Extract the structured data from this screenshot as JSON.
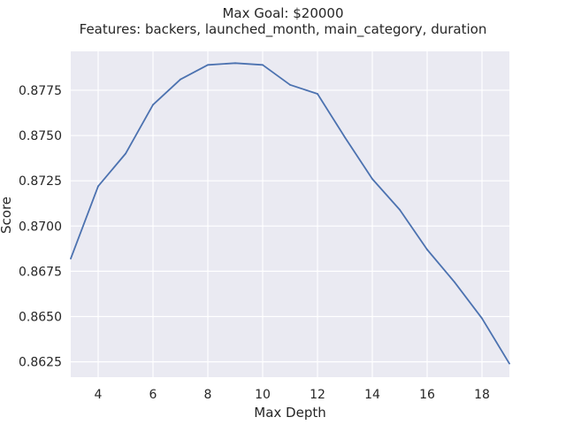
{
  "chart_data": {
    "type": "line",
    "title": "Max Goal: $20000",
    "subtitle": "Features: backers, launched_month, main_category, duration",
    "xlabel": "Max Depth",
    "ylabel": "Score",
    "xlim": [
      3,
      19
    ],
    "ylim": [
      0.86165,
      0.87965
    ],
    "xticks": [
      4,
      6,
      8,
      10,
      12,
      14,
      16,
      18
    ],
    "yticks": [
      0.8625,
      0.865,
      0.8675,
      0.87,
      0.8725,
      0.875,
      0.8775
    ],
    "ytick_labels": [
      "0.8625",
      "0.8650",
      "0.8675",
      "0.8700",
      "0.8725",
      "0.8750",
      "0.8775"
    ],
    "grid": true,
    "x": [
      3,
      4,
      5,
      6,
      7,
      8,
      9,
      10,
      11,
      12,
      13,
      14,
      15,
      16,
      17,
      18,
      19
    ],
    "series": [
      {
        "values": [
          0.8682,
          0.8722,
          0.874,
          0.8767,
          0.8781,
          0.8789,
          0.879,
          0.8789,
          0.8778,
          0.8773,
          0.8749,
          0.8726,
          0.8709,
          0.8687,
          0.8669,
          0.8649,
          0.8624
        ],
        "color": "#4c72b0"
      }
    ],
    "colors": {
      "plot_bg": "#eaeaf2",
      "grid": "#ffffff",
      "line": "#4c72b0",
      "text": "#262626"
    }
  }
}
